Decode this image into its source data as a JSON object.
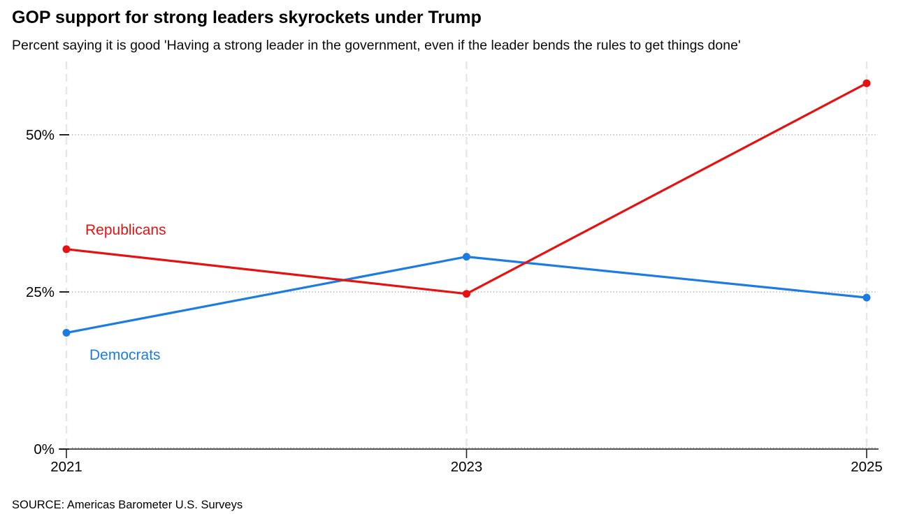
{
  "header": {
    "title": "GOP support for strong leaders skyrockets under Trump",
    "subtitle": "Percent saying it is good 'Having a strong leader in the government, even if the leader bends the rules to get things done'"
  },
  "chart_data": {
    "type": "line",
    "categories": [
      "2021",
      "2023",
      "2025"
    ],
    "series": [
      {
        "name": "Republicans",
        "color": "#e51212",
        "values": [
          31.8,
          24.7,
          58.2
        ]
      },
      {
        "name": "Democrats",
        "color": "#1d7ce2",
        "values": [
          18.5,
          30.6,
          24.1
        ]
      }
    ],
    "yticks": [
      {
        "value": 0,
        "label": "0%"
      },
      {
        "value": 25,
        "label": "25%"
      },
      {
        "value": 50,
        "label": "50%"
      }
    ],
    "ylim": [
      0,
      61.7
    ],
    "grid": {
      "horizontal": "dotted",
      "vertical": "dashed"
    },
    "legend_position": "inline-labels"
  },
  "colors": {
    "axis": "#1a1a1a",
    "tick": "#222222",
    "grid_vertical": "#e7e7e7",
    "grid_horizontal": "#9f9f9f",
    "tick_label": "#000000"
  },
  "footer": {
    "source": "SOURCE: Americas Barometer U.S. Surveys"
  }
}
